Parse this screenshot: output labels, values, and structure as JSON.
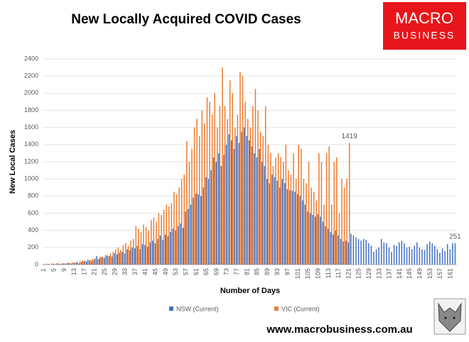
{
  "chart_data": {
    "type": "bar",
    "title": "New Locally Acquired COVID Cases",
    "logo": [
      "MACRO",
      "BUSINESS"
    ],
    "footer": "www.macrobusiness.com.au",
    "xlabel": "Number of Days",
    "ylabel": "New Local Cases",
    "ylim": [
      0,
      2400
    ],
    "yticks": [
      0,
      200,
      400,
      600,
      800,
      1000,
      1200,
      1400,
      1600,
      1800,
      2000,
      2200,
      2400
    ],
    "grid": true,
    "legend": "bottom",
    "categories": [
      1,
      null,
      null,
      null,
      5,
      null,
      null,
      null,
      9,
      null,
      null,
      null,
      13,
      null,
      null,
      null,
      17,
      null,
      null,
      null,
      21,
      null,
      null,
      null,
      25,
      null,
      null,
      null,
      29,
      null,
      null,
      null,
      33,
      null,
      null,
      null,
      37,
      null,
      null,
      null,
      41,
      null,
      null,
      null,
      45,
      null,
      null,
      null,
      49,
      null,
      null,
      null,
      53,
      null,
      null,
      null,
      57,
      null,
      null,
      null,
      61,
      null,
      null,
      null,
      65,
      null,
      null,
      null,
      69,
      null,
      null,
      null,
      73,
      null,
      null,
      null,
      77,
      null,
      null,
      null,
      81,
      null,
      null,
      null,
      85,
      null,
      null,
      null,
      89,
      null,
      null,
      null,
      93,
      null,
      null,
      null,
      97,
      null,
      null,
      null,
      101,
      null,
      null,
      null,
      105,
      null,
      null,
      null,
      109,
      null,
      null,
      null,
      113,
      null,
      null,
      null,
      117,
      null,
      null,
      null,
      121,
      null,
      null,
      null,
      125,
      null,
      null,
      null,
      129,
      null,
      null,
      null,
      133,
      null,
      null,
      null,
      137,
      null,
      null,
      null,
      141,
      null,
      null,
      null,
      145,
      null,
      null,
      null,
      149,
      null,
      null,
      null,
      153,
      null,
      null,
      null,
      157,
      null,
      null,
      null,
      161,
      null,
      null
    ],
    "series": [
      {
        "name": "NSW (Current)",
        "color": "#4472c4",
        "values": [
          5,
          3,
          8,
          4,
          10,
          6,
          12,
          8,
          15,
          10,
          18,
          12,
          20,
          25,
          15,
          30,
          40,
          35,
          50,
          45,
          60,
          100,
          70,
          90,
          80,
          110,
          100,
          95,
          130,
          120,
          140,
          150,
          130,
          180,
          170,
          200,
          190,
          220,
          180,
          240,
          230,
          210,
          260,
          280,
          250,
          300,
          340,
          290,
          350,
          330,
          380,
          420,
          400,
          450,
          480,
          430,
          620,
          650,
          700,
          780,
          830,
          820,
          800,
          900,
          1020,
          1000,
          1100,
          1250,
          1200,
          1300,
          1150,
          1280,
          1400,
          1520,
          1450,
          1350,
          1500,
          1420,
          1550,
          1600,
          1500,
          1450,
          1380,
          1300,
          1250,
          1350,
          1200,
          1150,
          1000,
          950,
          1050,
          1020,
          980,
          900,
          1000,
          950,
          880,
          870,
          860,
          850,
          820,
          800,
          750,
          700,
          620,
          600,
          580,
          560,
          590,
          560,
          500,
          450,
          420,
          380,
          350,
          400,
          340,
          300,
          270,
          280,
          260,
          360,
          340,
          320,
          300,
          280,
          300,
          290,
          250,
          220,
          150,
          180,
          200,
          300,
          260,
          250,
          200,
          150,
          230,
          220,
          260,
          280,
          250,
          200,
          210,
          180,
          220,
          260,
          200,
          180,
          170,
          240,
          270,
          250,
          220,
          180,
          140,
          190,
          160,
          240,
          180,
          250,
          251
        ],
        "value_labels": [
          null,
          null,
          null,
          null,
          null,
          null,
          null,
          null,
          null,
          null,
          null,
          null,
          null,
          null,
          null,
          null,
          null,
          null,
          null,
          null,
          null,
          null,
          null,
          null,
          null,
          null,
          null,
          null,
          null,
          null,
          null,
          null,
          null,
          null,
          null,
          null,
          null,
          null,
          null,
          null,
          null,
          null,
          null,
          null,
          null,
          null,
          null,
          null,
          null,
          null,
          null,
          null,
          null,
          null,
          null,
          null,
          null,
          null,
          null,
          null,
          null,
          null,
          null,
          null,
          null,
          null,
          null,
          null,
          null,
          null,
          null,
          null,
          null,
          null,
          null,
          null,
          null,
          null,
          null,
          null,
          null,
          null,
          null,
          null,
          null,
          null,
          null,
          null,
          null,
          null,
          null,
          null,
          null,
          null,
          null,
          null,
          null,
          null,
          null,
          null,
          null,
          null,
          null,
          null,
          null,
          null,
          null,
          null,
          null,
          null,
          null,
          null,
          null,
          null,
          null,
          null,
          null,
          null,
          null,
          null,
          null,
          null,
          null,
          null,
          null,
          null,
          null,
          null,
          null,
          null,
          null,
          null,
          null,
          null,
          null,
          null,
          null,
          null,
          null,
          null,
          null,
          null,
          null,
          null,
          null,
          null,
          null,
          null,
          null,
          null,
          null,
          null,
          null,
          null,
          null,
          null,
          null,
          null,
          null,
          null,
          null,
          null,
          "251"
        ]
      },
      {
        "name": "VIC (Current)",
        "color": "#ed7d31",
        "values": [
          8,
          12,
          6,
          15,
          10,
          20,
          8,
          18,
          12,
          25,
          20,
          30,
          25,
          35,
          40,
          50,
          45,
          60,
          55,
          70,
          75,
          65,
          90,
          85,
          110,
          100,
          130,
          150,
          180,
          200,
          170,
          230,
          250,
          220,
          280,
          300,
          450,
          420,
          380,
          470,
          440,
          400,
          520,
          550,
          500,
          600,
          580,
          640,
          700,
          680,
          720,
          850,
          820,
          900,
          1000,
          1050,
          1440,
          1200,
          1350,
          1600,
          1700,
          1500,
          1800,
          1650,
          1950,
          1900,
          1750,
          2000,
          1600,
          1850,
          2300,
          1850,
          1700,
          2150,
          2000,
          1600,
          1750,
          2250,
          2200,
          1900,
          1700,
          1600,
          1850,
          2050,
          1800,
          1550,
          1500,
          1850,
          1400,
          1300,
          1150,
          1250,
          1300,
          1250,
          1200,
          1400,
          1100,
          1050,
          1300,
          1000,
          1400,
          1350,
          1000,
          950,
          1200,
          900,
          850,
          750,
          1300,
          1200,
          700,
          1300,
          1380,
          700,
          1200,
          1250,
          600,
          1000,
          900,
          1000,
          1419,
          null,
          null,
          null,
          null,
          null,
          null,
          null,
          null,
          null,
          null,
          null,
          null,
          null,
          null,
          null,
          null,
          null,
          null,
          null,
          null,
          null,
          null,
          null,
          null,
          null,
          null,
          null,
          null,
          null,
          null,
          null,
          null,
          null,
          null,
          null,
          null,
          null,
          null,
          null,
          null,
          null,
          null
        ],
        "value_labels": [
          null,
          null,
          null,
          null,
          null,
          null,
          null,
          null,
          null,
          null,
          null,
          null,
          null,
          null,
          null,
          null,
          null,
          null,
          null,
          null,
          null,
          null,
          null,
          null,
          null,
          null,
          null,
          null,
          null,
          null,
          null,
          null,
          null,
          null,
          null,
          null,
          null,
          null,
          null,
          null,
          null,
          null,
          null,
          null,
          null,
          null,
          null,
          null,
          null,
          null,
          null,
          null,
          null,
          null,
          null,
          null,
          null,
          null,
          null,
          null,
          null,
          null,
          null,
          null,
          null,
          null,
          null,
          null,
          null,
          null,
          null,
          null,
          null,
          null,
          null,
          null,
          null,
          null,
          null,
          null,
          null,
          null,
          null,
          null,
          null,
          null,
          null,
          null,
          null,
          null,
          null,
          null,
          null,
          null,
          null,
          null,
          null,
          null,
          null,
          null,
          null,
          null,
          null,
          null,
          null,
          null,
          null,
          null,
          null,
          null,
          null,
          null,
          null,
          null,
          null,
          null,
          null,
          null,
          null,
          null,
          "1419",
          null,
          null,
          null,
          null,
          null,
          null,
          null,
          null,
          null,
          null,
          null,
          null,
          null,
          null,
          null,
          null,
          null,
          null,
          null,
          null,
          null,
          null,
          null,
          null,
          null,
          null,
          null,
          null,
          null,
          null,
          null,
          null,
          null,
          null,
          null,
          null,
          null,
          null,
          null,
          null,
          null,
          null
        ]
      }
    ]
  }
}
